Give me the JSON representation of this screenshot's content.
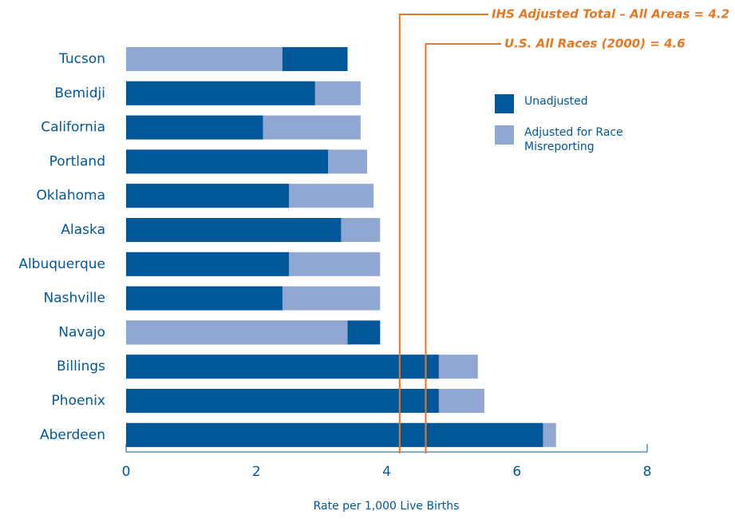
{
  "chart_data": {
    "type": "overlapping_bar",
    "categories": [
      "Tucson",
      "Bemidji",
      "California",
      "Portland",
      "Oklahoma",
      "Alaska",
      "Albuquerque",
      "Nashville",
      "Navajo",
      "Billings",
      "Phoenix",
      "Aberdeen"
    ],
    "series": [
      {
        "name": "Unadjusted",
        "color": "#00589a",
        "values": [
          3.4,
          2.9,
          2.1,
          3.1,
          2.5,
          3.3,
          2.5,
          2.4,
          3.9,
          4.8,
          4.8,
          6.4
        ]
      },
      {
        "name": "Adjusted for Race Misreporting",
        "color": "#8fa7d1",
        "values": [
          2.4,
          3.6,
          3.6,
          3.7,
          3.8,
          3.9,
          3.9,
          3.9,
          3.4,
          5.4,
          5.5,
          6.6
        ]
      }
    ],
    "xlabel": "Rate per 1,000 Live Births",
    "xlim": [
      0,
      8
    ],
    "xticks": [
      0,
      2,
      4,
      6,
      8
    ],
    "reference_lines": [
      {
        "value": 4.2,
        "label": "IHS Adjusted Total – All Areas = 4.2"
      },
      {
        "value": 4.6,
        "label": "U.S. All Races (2000) = 4.6"
      }
    ],
    "reference_color": "#e87722"
  }
}
